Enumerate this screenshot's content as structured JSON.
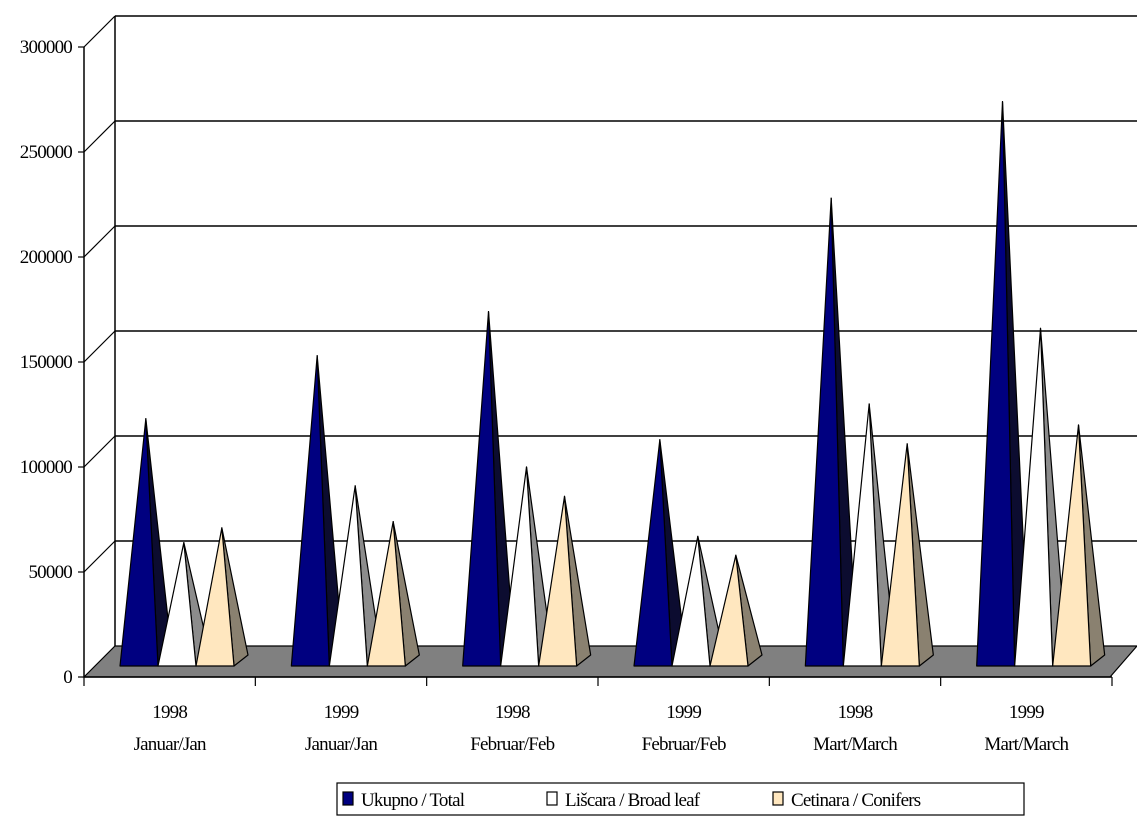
{
  "chart_data": {
    "type": "bar",
    "style": "3d-pyramid",
    "categories": [
      [
        "1998",
        "Januar/Jan"
      ],
      [
        "1999",
        "Januar/Jan"
      ],
      [
        "1998",
        "Februar/Feb"
      ],
      [
        "1999",
        "Februar/Feb"
      ],
      [
        "1998",
        "Mart/March"
      ],
      [
        "1999",
        "Mart/March"
      ]
    ],
    "series": [
      {
        "name": "Ukupno / Total",
        "color": "#000080",
        "side_color": "#0c0c30",
        "values": [
          113000,
          143000,
          164000,
          103000,
          218000,
          264000
        ]
      },
      {
        "name": "Lišcara / Broad leaf",
        "color": "#ffffff",
        "side_color": "#8c8c8c",
        "values": [
          54000,
          81000,
          90000,
          57000,
          120000,
          156000
        ]
      },
      {
        "name": "Cetinara / Conifers",
        "color": "#ffe7bf",
        "side_color": "#8a8170",
        "values": [
          61000,
          64000,
          76000,
          48000,
          101000,
          110000
        ]
      }
    ],
    "yticks": [
      "0",
      "50000",
      "100000",
      "150000",
      "200000",
      "250000",
      "300000"
    ],
    "ylim": [
      0,
      300000
    ],
    "grid": true,
    "legend_position": "bottom",
    "floor_color": "#808080"
  }
}
